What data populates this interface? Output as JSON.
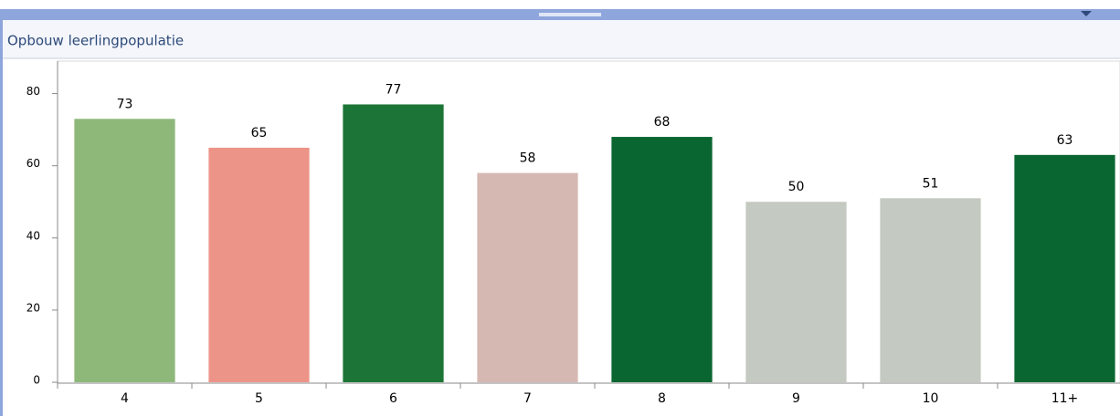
{
  "chart_data": {
    "type": "bar",
    "title": "Opbouw leerlingpopulatie",
    "categories": [
      "4",
      "5",
      "6",
      "7",
      "8",
      "9",
      "10",
      "11+"
    ],
    "values": [
      73,
      65,
      77,
      58,
      68,
      50,
      51,
      63
    ],
    "colors": [
      "#8db87a",
      "#ed9488",
      "#1c7536",
      "#d6b8b2",
      "#0a6630",
      "#c4c9c1",
      "#c4c9c1",
      "#0a6630"
    ],
    "ylim": [
      0,
      89
    ],
    "yticks": [
      0,
      20,
      40,
      60,
      80
    ],
    "grid": false
  }
}
